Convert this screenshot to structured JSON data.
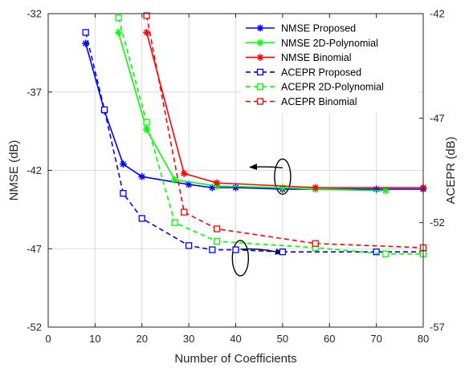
{
  "chart_data": {
    "type": "line",
    "xlabel": "Number of Coefficients",
    "ylabel_left": "NMSE (dB)",
    "ylabel_right": "ACEPR (dB)",
    "xlim": [
      0,
      80
    ],
    "ylim_left": [
      -52,
      -32
    ],
    "ylim_right": [
      -57,
      -42
    ],
    "x_ticks": [
      0,
      10,
      20,
      30,
      40,
      50,
      60,
      70,
      80
    ],
    "y_ticks_left": [
      -32,
      -37,
      -42,
      -47,
      -52
    ],
    "y_ticks_right": [
      -42,
      -47,
      -52,
      -57
    ],
    "grid": true,
    "legend_position": "top-right",
    "series": [
      {
        "name": "NMSE Proposed",
        "axis": "left",
        "color": "#0000ff",
        "linestyle": "solid",
        "marker": "asterisk",
        "x": [
          8,
          12,
          16,
          20,
          30,
          35,
          40,
          50,
          57,
          70,
          80
        ],
        "y": [
          -33.9,
          -38.2,
          -41.6,
          -42.4,
          -42.9,
          -43.1,
          -43.1,
          -43.2,
          -43.2,
          -43.2,
          -43.2
        ]
      },
      {
        "name": "NMSE 2D-Polynomial",
        "axis": "left",
        "color": "#00ff00",
        "linestyle": "solid",
        "marker": "asterisk",
        "x": [
          15,
          21,
          27,
          36,
          50,
          57,
          72
        ],
        "y": [
          -33.2,
          -39.4,
          -42.6,
          -43.0,
          -43.1,
          -43.2,
          -43.3
        ]
      },
      {
        "name": "NMSE Binomial",
        "axis": "left",
        "color": "#ff0000",
        "linestyle": "solid",
        "marker": "asterisk",
        "x": [
          21,
          29,
          36,
          57,
          80
        ],
        "y": [
          -33.2,
          -42.2,
          -42.8,
          -43.1,
          -43.1
        ]
      },
      {
        "name": "ACEPR Proposed",
        "axis": "right",
        "color": "#0000ff",
        "linestyle": "dashed",
        "marker": "square",
        "x": [
          8,
          12,
          16,
          20,
          30,
          35,
          40,
          50,
          70,
          80
        ],
        "y": [
          -42.9,
          -46.6,
          -50.6,
          -51.8,
          -53.1,
          -53.3,
          -53.3,
          -53.4,
          -53.4,
          -53.4
        ]
      },
      {
        "name": "ACEPR 2D-Polynomial",
        "axis": "right",
        "color": "#00ff00",
        "linestyle": "dashed",
        "marker": "square",
        "x": [
          15,
          21,
          27,
          36,
          57,
          72,
          80
        ],
        "y": [
          -42.2,
          -47.2,
          -52.0,
          -52.9,
          -53.2,
          -53.5,
          -53.5
        ]
      },
      {
        "name": "ACEPR Binomial",
        "axis": "right",
        "color": "#ff0000",
        "linestyle": "dashed",
        "marker": "square",
        "x": [
          21,
          29,
          36,
          57,
          80
        ],
        "y": [
          -42.1,
          -51.5,
          -52.3,
          -53.0,
          -53.2
        ]
      }
    ],
    "annotations": [
      {
        "type": "ellipse-arrow",
        "ellipse_center": [
          50,
          -42.4
        ],
        "arrow_to": [
          43,
          -41.8
        ],
        "meaning": "NMSE curves refer to left axis"
      },
      {
        "type": "ellipse-arrow",
        "ellipse_center": [
          41,
          -47.6
        ],
        "arrow_to": [
          50,
          -47.3
        ],
        "meaning": "ACEPR curves refer to right axis"
      }
    ]
  }
}
